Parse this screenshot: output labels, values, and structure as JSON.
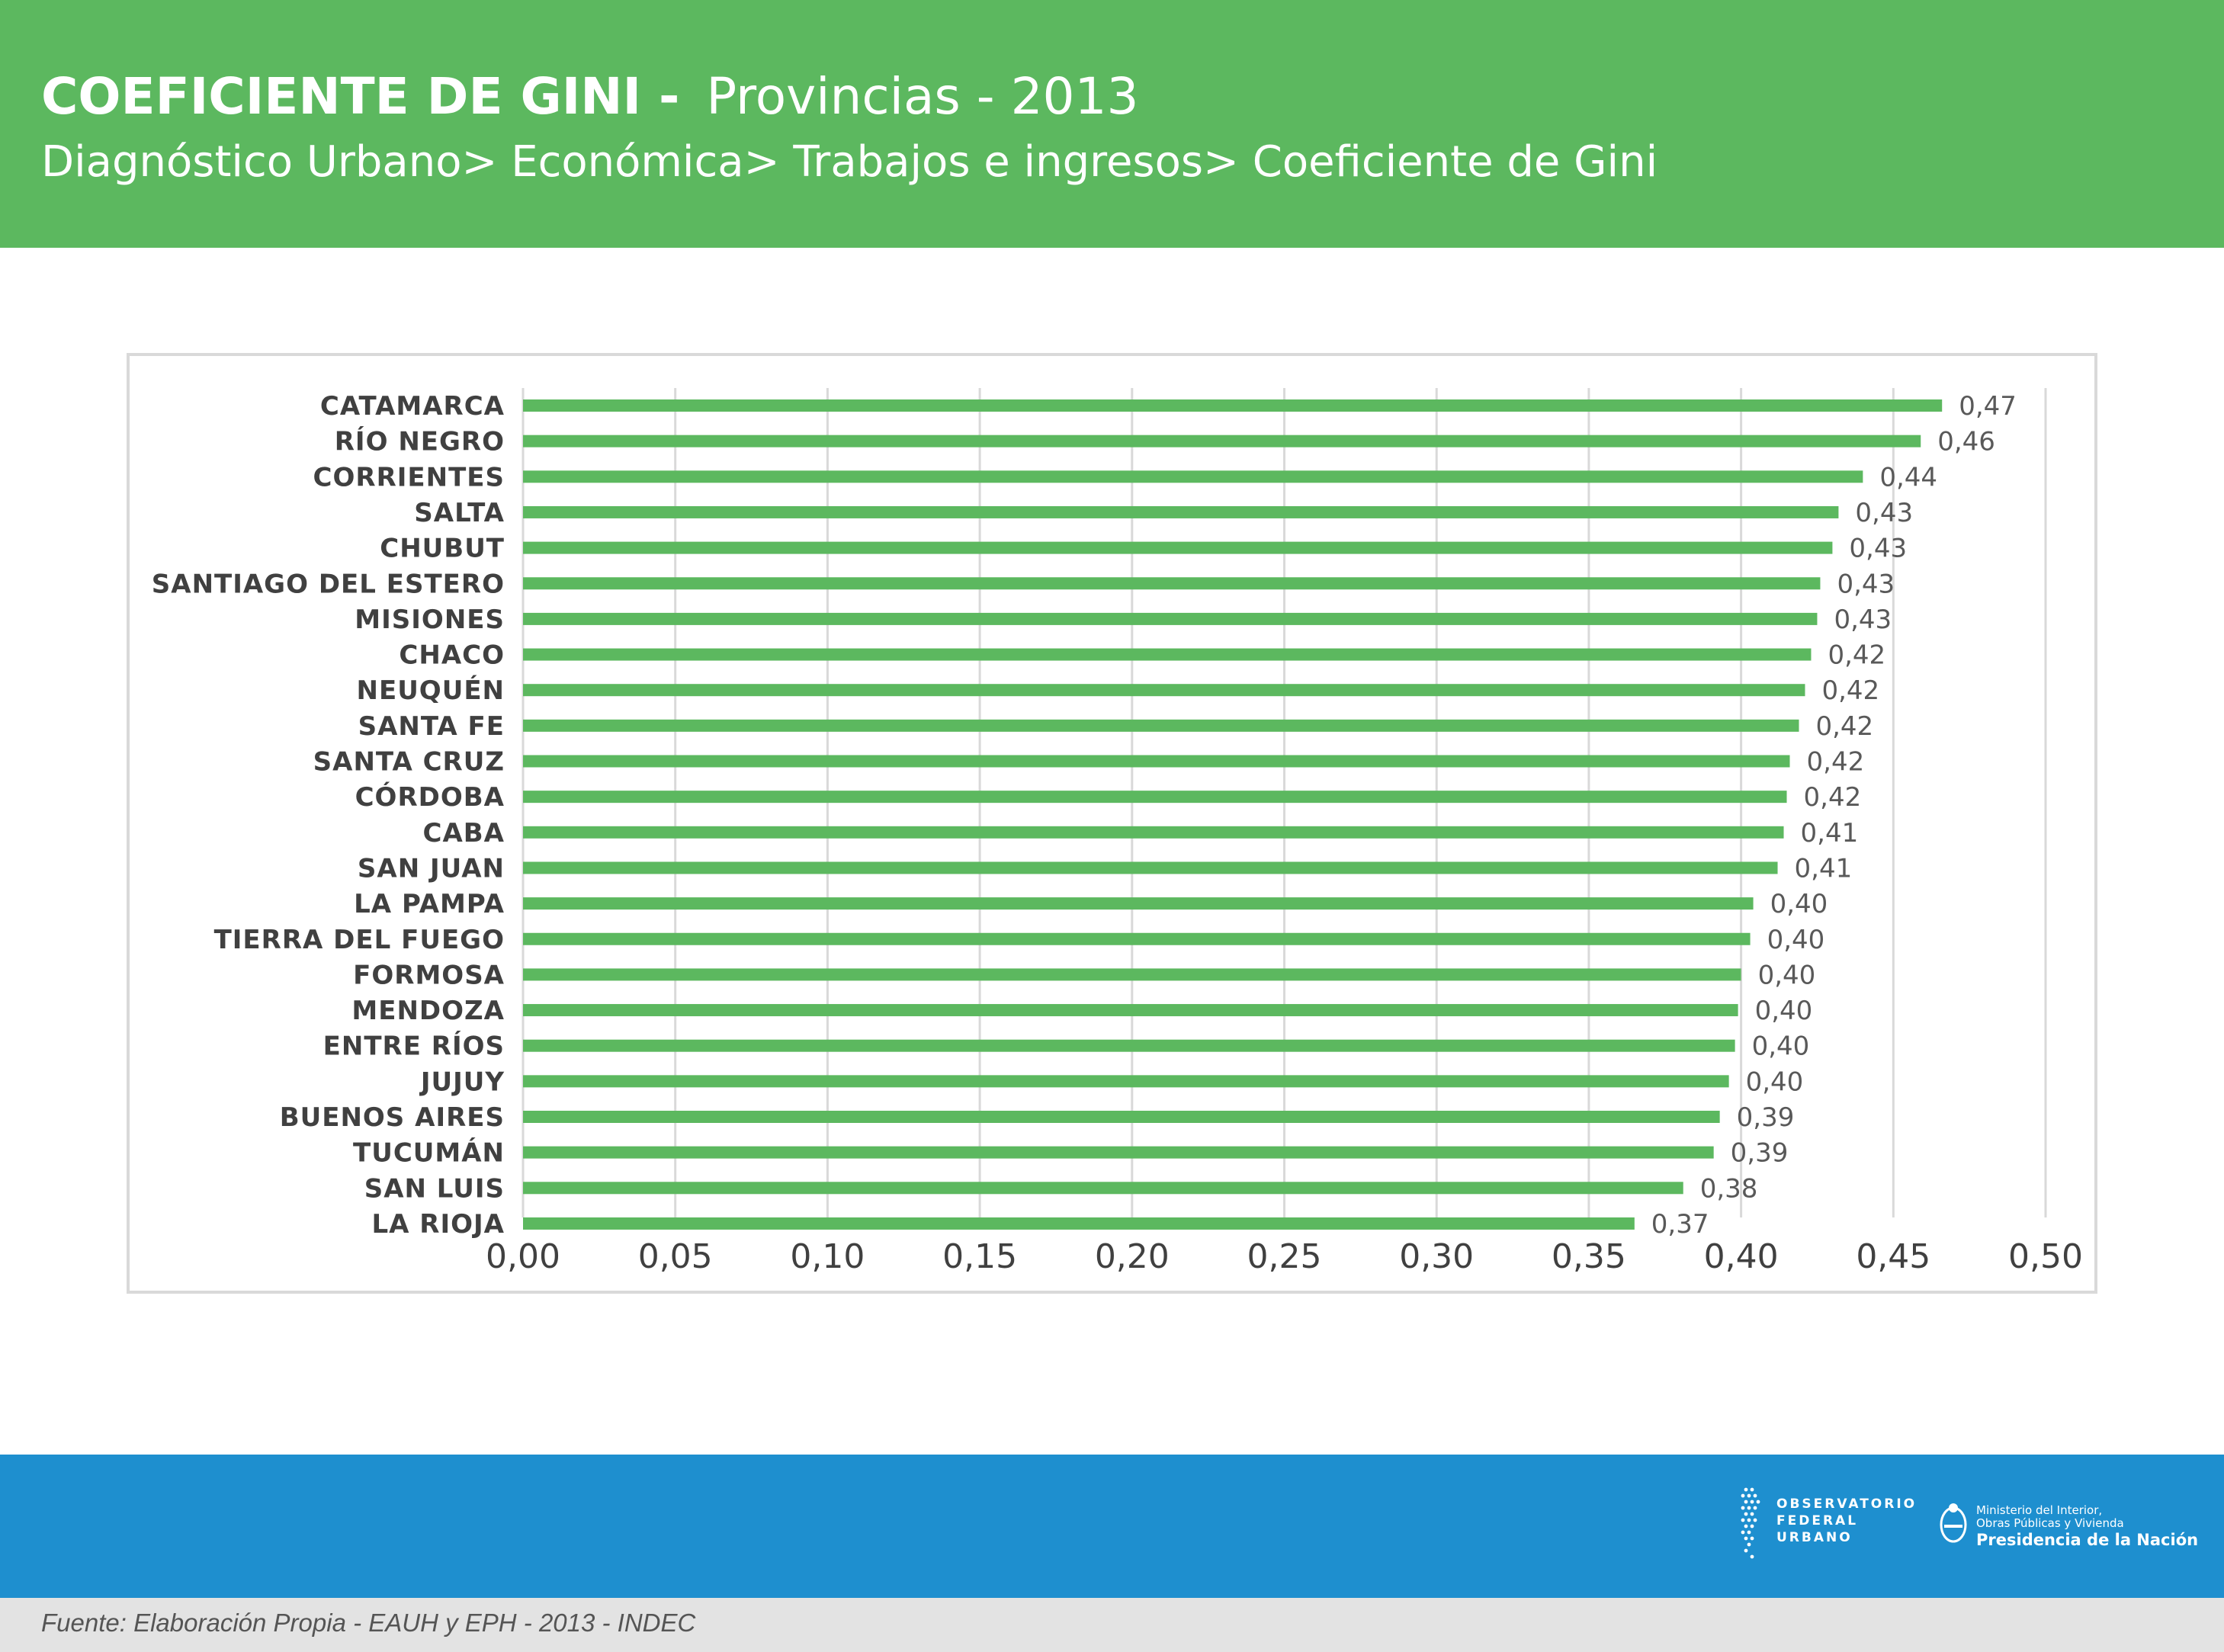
{
  "header": {
    "title_strong": "COEFICIENTE DE GINI -",
    "title_sub": "Provincias - 2013",
    "breadcrumb": "Diagnóstico Urbano> Económica> Trabajos e ingresos> Coeficiente de Gini"
  },
  "colors": {
    "header_bg": "#5cb85f",
    "bar": "#5cb85f",
    "footer_band": "#1e8fcf",
    "source_band": "#e3e3e3"
  },
  "chart_data": {
    "type": "bar",
    "orientation": "horizontal",
    "categories": [
      "CATAMARCA",
      "RÍO NEGRO",
      "CORRIENTES",
      "SALTA",
      "CHUBUT",
      "SANTIAGO DEL ESTERO",
      "MISIONES",
      "CHACO",
      "NEUQUÉN",
      "SANTA FE",
      "SANTA CRUZ",
      "CÓRDOBA",
      "CABA",
      "SAN JUAN",
      "LA PAMPA",
      "TIERRA DEL FUEGO",
      "FORMOSA",
      "MENDOZA",
      "ENTRE RÍOS",
      "JUJUY",
      "BUENOS AIRES",
      "TUCUMÁN",
      "SAN LUIS",
      "LA RIOJA"
    ],
    "values": [
      0.466,
      0.459,
      0.44,
      0.432,
      0.43,
      0.426,
      0.425,
      0.423,
      0.421,
      0.419,
      0.416,
      0.415,
      0.414,
      0.412,
      0.404,
      0.403,
      0.4,
      0.399,
      0.398,
      0.396,
      0.393,
      0.391,
      0.381,
      0.365
    ],
    "value_labels": [
      "0,47",
      "0,46",
      "0,44",
      "0,43",
      "0,43",
      "0,43",
      "0,43",
      "0,42",
      "0,42",
      "0,42",
      "0,42",
      "0,42",
      "0,41",
      "0,41",
      "0,40",
      "0,40",
      "0,40",
      "0,40",
      "0,40",
      "0,40",
      "0,39",
      "0,39",
      "0,38",
      "0,37"
    ],
    "x_ticks": [
      "0,00",
      "0,05",
      "0,10",
      "0,15",
      "0,20",
      "0,25",
      "0,30",
      "0,35",
      "0,40",
      "0,45",
      "0,50"
    ],
    "xlim": [
      0,
      0.5
    ],
    "grid": true,
    "legend": "none"
  },
  "footer": {
    "observatorio_text": "OBSERVATORIO\nFEDERAL\nURBANO",
    "ministry_line1": "Ministerio del Interior,",
    "ministry_line2": "Obras Públicas y Vivienda",
    "ministry_line3": "Presidencia de la Nación"
  },
  "source": {
    "text": "Fuente: Elaboración Propia - EAUH y EPH - 2013 - INDEC"
  }
}
